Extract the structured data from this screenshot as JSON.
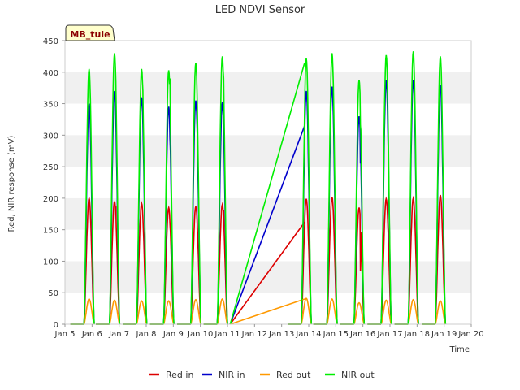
{
  "chart_data": {
    "type": "line",
    "title": "LED NDVI Sensor",
    "xlabel": "Time",
    "ylabel": "Red, NIR response (mV)",
    "site_label": "MB_tule",
    "xlim": [
      0,
      15
    ],
    "ylim": [
      0,
      450
    ],
    "x_ticks": [
      {
        "x": 0,
        "label": "Jan 5"
      },
      {
        "x": 1,
        "label": "Jan 6"
      },
      {
        "x": 2,
        "label": "Jan 7"
      },
      {
        "x": 3,
        "label": "Jan 8"
      },
      {
        "x": 4,
        "label": "Jan 9"
      },
      {
        "x": 5,
        "label": "Jan 10"
      },
      {
        "x": 6,
        "label": "Jan 11"
      },
      {
        "x": 7,
        "label": "Jan 12"
      },
      {
        "x": 8,
        "label": "Jan 13"
      },
      {
        "x": 9,
        "label": "Jan 14"
      },
      {
        "x": 10,
        "label": "Jan 15"
      },
      {
        "x": 11,
        "label": "Jan 16"
      },
      {
        "x": 12,
        "label": "Jan 17"
      },
      {
        "x": 13,
        "label": "Jan 18"
      },
      {
        "x": 14,
        "label": "Jan 19"
      },
      {
        "x": 15,
        "label": "Jan 20"
      }
    ],
    "y_ticks": [
      0,
      50,
      100,
      150,
      200,
      250,
      300,
      350,
      400,
      450
    ],
    "grid": "horizontal bands",
    "legend_position": "bottom",
    "series": [
      {
        "name": "Red in",
        "color": "#dd0000",
        "peaks": [
          {
            "day": 0.88,
            "peak": 200,
            "secondary": null
          },
          {
            "day": 1.82,
            "peak": 195,
            "secondary": 185
          },
          {
            "day": 2.82,
            "peak": 192,
            "secondary": null
          },
          {
            "day": 3.82,
            "peak": 185,
            "secondary": 160
          },
          {
            "day": 4.82,
            "peak": 187,
            "secondary": null
          },
          {
            "day": 5.8,
            "peak": 190,
            "secondary": 180
          },
          {
            "day": 8.9,
            "peak": 199,
            "secondary": null
          },
          {
            "day": 9.85,
            "peak": 202,
            "secondary": null
          },
          {
            "day": 10.85,
            "peak": 185,
            "secondary": 85
          },
          {
            "day": 11.85,
            "peak": 199,
            "secondary": null
          },
          {
            "day": 12.85,
            "peak": 200,
            "secondary": null
          },
          {
            "day": 13.85,
            "peak": 205,
            "secondary": null
          }
        ],
        "gap_line": {
          "from": [
            6.1,
            0
          ],
          "to": [
            8.85,
            162
          ]
        }
      },
      {
        "name": "NIR in",
        "color": "#0000cc",
        "peaks": [
          {
            "day": 0.88,
            "peak": 350,
            "secondary": null
          },
          {
            "day": 1.82,
            "peak": 370,
            "secondary": 330
          },
          {
            "day": 2.82,
            "peak": 360,
            "secondary": null
          },
          {
            "day": 3.82,
            "peak": 345,
            "secondary": 295
          },
          {
            "day": 4.82,
            "peak": 355,
            "secondary": null
          },
          {
            "day": 5.8,
            "peak": 352,
            "secondary": 320
          },
          {
            "day": 8.9,
            "peak": 370,
            "secondary": null
          },
          {
            "day": 9.85,
            "peak": 377,
            "secondary": null
          },
          {
            "day": 10.85,
            "peak": 330,
            "secondary": 255
          },
          {
            "day": 11.85,
            "peak": 388,
            "secondary": null
          },
          {
            "day": 12.85,
            "peak": 388,
            "secondary": null
          },
          {
            "day": 13.85,
            "peak": 380,
            "secondary": null
          }
        ],
        "gap_line": {
          "from": [
            6.1,
            0
          ],
          "to": [
            8.85,
            315
          ]
        }
      },
      {
        "name": "Red out",
        "color": "#ff9900",
        "peaks": [
          {
            "day": 0.88,
            "peak": 40,
            "secondary": null
          },
          {
            "day": 1.82,
            "peak": 38,
            "secondary": null
          },
          {
            "day": 2.82,
            "peak": 37,
            "secondary": null
          },
          {
            "day": 3.82,
            "peak": 37,
            "secondary": null
          },
          {
            "day": 4.82,
            "peak": 39,
            "secondary": null
          },
          {
            "day": 5.8,
            "peak": 40,
            "secondary": null
          },
          {
            "day": 8.9,
            "peak": 41,
            "secondary": null
          },
          {
            "day": 9.85,
            "peak": 40,
            "secondary": null
          },
          {
            "day": 10.85,
            "peak": 34,
            "secondary": null
          },
          {
            "day": 11.85,
            "peak": 38,
            "secondary": null
          },
          {
            "day": 12.85,
            "peak": 39,
            "secondary": null
          },
          {
            "day": 13.85,
            "peak": 37,
            "secondary": null
          }
        ],
        "gap_line": {
          "from": [
            6.1,
            0
          ],
          "to": [
            8.85,
            40
          ]
        }
      },
      {
        "name": "NIR out",
        "color": "#00ee00",
        "peaks": [
          {
            "day": 0.88,
            "peak": 405,
            "secondary": null
          },
          {
            "day": 1.82,
            "peak": 430,
            "secondary": 385
          },
          {
            "day": 2.82,
            "peak": 405,
            "secondary": 370
          },
          {
            "day": 3.82,
            "peak": 403,
            "secondary": 390
          },
          {
            "day": 4.82,
            "peak": 415,
            "secondary": null
          },
          {
            "day": 5.8,
            "peak": 425,
            "secondary": 390
          },
          {
            "day": 8.9,
            "peak": 422,
            "secondary": null
          },
          {
            "day": 9.85,
            "peak": 430,
            "secondary": 380
          },
          {
            "day": 10.85,
            "peak": 388,
            "secondary": 315
          },
          {
            "day": 11.85,
            "peak": 427,
            "secondary": null
          },
          {
            "day": 12.85,
            "peak": 433,
            "secondary": 385
          },
          {
            "day": 13.85,
            "peak": 425,
            "secondary": null
          }
        ],
        "gap_line": {
          "from": [
            6.1,
            0
          ],
          "to": [
            8.85,
            415
          ]
        }
      }
    ]
  }
}
